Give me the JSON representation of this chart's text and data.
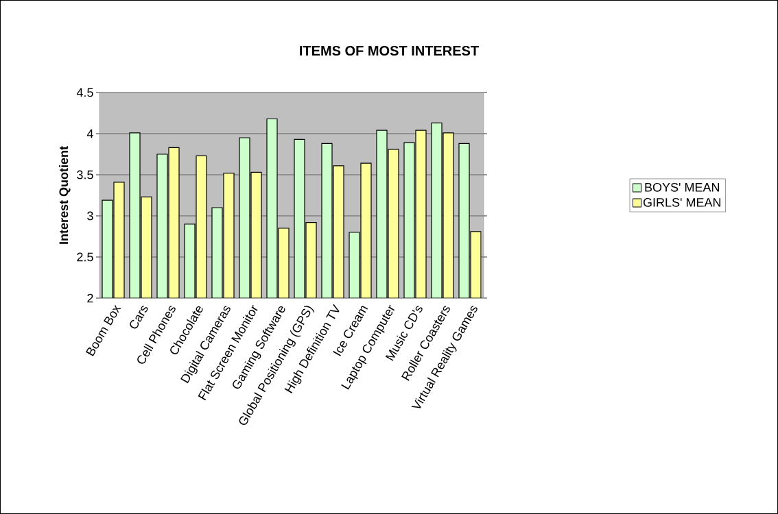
{
  "chart_data": {
    "type": "bar",
    "title": "ITEMS OF MOST INTEREST",
    "ylabel": "Interest Quotient",
    "categories": [
      "Boom Box",
      "Cars",
      "Cell Phones",
      "Chocolate",
      "Digital Cameras",
      "Flat Screen Monitor",
      "Gaming Software",
      "Global Positioning  (GPS)",
      "High Definition TV",
      "Ice Cream",
      "Laptop Computer",
      "Music CD's",
      "Roller Coasters",
      "Virtual Reality Games"
    ],
    "series": [
      {
        "name": "BOYS' MEAN",
        "color": "#ccffcc",
        "values": [
          3.19,
          4.01,
          3.75,
          2.9,
          3.1,
          3.95,
          4.18,
          3.93,
          3.88,
          2.8,
          4.04,
          3.89,
          4.13,
          3.88
        ]
      },
      {
        "name": "GIRLS' MEAN",
        "color": "#ffff99",
        "values": [
          3.41,
          3.23,
          3.83,
          3.73,
          3.52,
          3.53,
          2.85,
          2.92,
          3.61,
          3.64,
          3.81,
          4.04,
          4.01,
          2.81
        ]
      }
    ],
    "ylim": [
      2,
      4.5
    ],
    "yticks": [
      2,
      2.5,
      3,
      3.5,
      4,
      4.5
    ],
    "grid": "y",
    "legend": "right"
  }
}
